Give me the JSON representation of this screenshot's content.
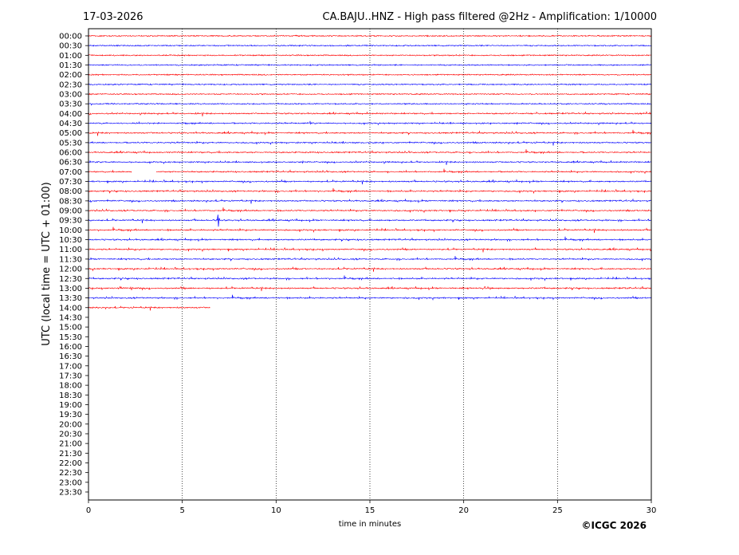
{
  "header": {
    "date": "17-03-2026",
    "title": "CA.BAJU..HNZ - High pass filtered @2Hz - Amplification: 1/10000"
  },
  "credit": "©ICGC 2026",
  "colors": {
    "odd_trace": "#ff0000",
    "even_trace": "#0000ff",
    "grid": "#000000",
    "background": "#ffffff"
  },
  "chart_data": {
    "type": "line",
    "title": "CA.BAJU..HNZ - High pass filtered @2Hz - Amplification: 1/10000",
    "xlabel": "time in minutes",
    "ylabel": "UTC (local time = UTC + 01:00)",
    "xlim": [
      0,
      30
    ],
    "xticks": [
      "0",
      "5",
      "10",
      "15",
      "20",
      "25",
      "30"
    ],
    "xtick_values": [
      0,
      5,
      10,
      15,
      20,
      25,
      30
    ],
    "vertical_gridlines_at": [
      5,
      10,
      15,
      20,
      25
    ],
    "grid": "dotted vertical",
    "row_labels": [
      "00:00",
      "00:30",
      "01:00",
      "01:30",
      "02:00",
      "02:30",
      "03:00",
      "03:30",
      "04:00",
      "04:30",
      "05:00",
      "05:30",
      "06:00",
      "06:30",
      "07:00",
      "07:30",
      "08:00",
      "08:30",
      "09:00",
      "09:30",
      "10:00",
      "10:30",
      "11:00",
      "11:30",
      "12:00",
      "12:30",
      "13:00",
      "13:30",
      "14:00",
      "14:30",
      "15:00",
      "15:30",
      "16:00",
      "16:30",
      "17:00",
      "17:30",
      "18:00",
      "18:30",
      "19:00",
      "19:30",
      "20:00",
      "20:30",
      "21:00",
      "21:30",
      "22:00",
      "22:30",
      "23:00",
      "23:30"
    ],
    "series": [
      {
        "row": "00:00",
        "color": "red",
        "end_minute": 30,
        "activity": 0.05
      },
      {
        "row": "00:30",
        "color": "blue",
        "end_minute": 30,
        "activity": 0.05
      },
      {
        "row": "01:00",
        "color": "red",
        "end_minute": 30,
        "activity": 0.05
      },
      {
        "row": "01:30",
        "color": "blue",
        "end_minute": 30,
        "activity": 0.05
      },
      {
        "row": "02:00",
        "color": "red",
        "end_minute": 30,
        "activity": 0.05
      },
      {
        "row": "02:30",
        "color": "blue",
        "end_minute": 30,
        "activity": 0.05
      },
      {
        "row": "03:00",
        "color": "red",
        "end_minute": 30,
        "activity": 0.05
      },
      {
        "row": "03:30",
        "color": "blue",
        "end_minute": 30,
        "activity": 0.1
      },
      {
        "row": "04:00",
        "color": "red",
        "end_minute": 30,
        "activity": 0.45
      },
      {
        "row": "04:30",
        "color": "blue",
        "end_minute": 30,
        "activity": 0.45
      },
      {
        "row": "05:00",
        "color": "red",
        "end_minute": 30,
        "activity": 0.55
      },
      {
        "row": "05:30",
        "color": "blue",
        "end_minute": 30,
        "activity": 0.5
      },
      {
        "row": "06:00",
        "color": "red",
        "end_minute": 30,
        "activity": 0.5
      },
      {
        "row": "06:30",
        "color": "blue",
        "end_minute": 30,
        "activity": 0.45
      },
      {
        "row": "07:00",
        "color": "red",
        "end_minute": 30,
        "activity": 0.5,
        "gap": [
          2.3,
          3.6
        ]
      },
      {
        "row": "07:30",
        "color": "blue",
        "end_minute": 30,
        "activity": 0.6
      },
      {
        "row": "08:00",
        "color": "red",
        "end_minute": 30,
        "activity": 0.6
      },
      {
        "row": "08:30",
        "color": "blue",
        "end_minute": 30,
        "activity": 0.55
      },
      {
        "row": "09:00",
        "color": "red",
        "end_minute": 30,
        "activity": 0.55
      },
      {
        "row": "09:30",
        "color": "blue",
        "end_minute": 30,
        "activity": 0.6,
        "spike_minute": 6.9
      },
      {
        "row": "10:00",
        "color": "red",
        "end_minute": 30,
        "activity": 0.6
      },
      {
        "row": "10:30",
        "color": "blue",
        "end_minute": 30,
        "activity": 0.6
      },
      {
        "row": "11:00",
        "color": "red",
        "end_minute": 30,
        "activity": 0.6
      },
      {
        "row": "11:30",
        "color": "blue",
        "end_minute": 30,
        "activity": 0.55
      },
      {
        "row": "12:00",
        "color": "red",
        "end_minute": 30,
        "activity": 0.6
      },
      {
        "row": "12:30",
        "color": "blue",
        "end_minute": 30,
        "activity": 0.6
      },
      {
        "row": "13:00",
        "color": "red",
        "end_minute": 30,
        "activity": 0.65
      },
      {
        "row": "13:30",
        "color": "blue",
        "end_minute": 30,
        "activity": 0.6
      },
      {
        "row": "14:00",
        "color": "red",
        "end_minute": 6.5,
        "activity": 0.5
      }
    ]
  }
}
